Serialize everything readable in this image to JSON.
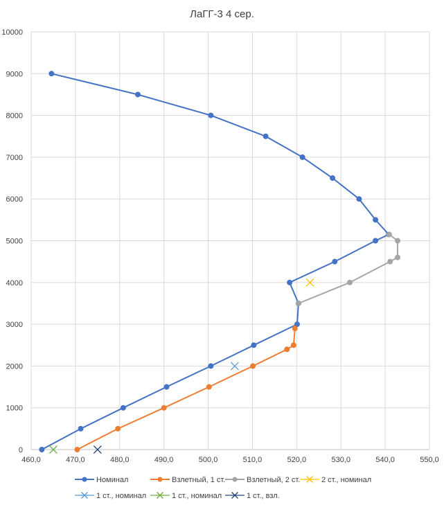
{
  "chart_data": {
    "type": "scatter",
    "title": "ЛаГГ-3 4 сер.",
    "xlabel": "",
    "ylabel": "",
    "xlim": [
      460,
      550
    ],
    "ylim": [
      0,
      10000
    ],
    "x_ticks": [
      "460,0",
      "470,0",
      "480,0",
      "490,0",
      "500,0",
      "510,0",
      "520,0",
      "530,0",
      "540,0",
      "550,0"
    ],
    "y_ticks": [
      "0",
      "1000",
      "2000",
      "3000",
      "4000",
      "5000",
      "6000",
      "7000",
      "8000",
      "9000",
      "10000"
    ],
    "grid": "vertical-and-horizontal",
    "legend_position": "bottom",
    "series": [
      {
        "name": "Номинал",
        "color": "#4472C4",
        "marker": "circle",
        "line": true,
        "points": [
          [
            462.4,
            0
          ],
          [
            471.2,
            500
          ],
          [
            480.8,
            1000
          ],
          [
            490.6,
            1500
          ],
          [
            500.6,
            2000
          ],
          [
            510.3,
            2500
          ],
          [
            520.1,
            3000
          ],
          [
            520.4,
            3500
          ],
          [
            518.4,
            4000
          ],
          [
            528.6,
            4500
          ],
          [
            537.8,
            5000
          ],
          [
            540.8,
            5150
          ],
          [
            537.8,
            5500
          ],
          [
            534.1,
            6000
          ],
          [
            528.1,
            6500
          ],
          [
            521.3,
            7000
          ],
          [
            513.0,
            7500
          ],
          [
            500.6,
            8000
          ],
          [
            484.1,
            8500
          ],
          [
            464.6,
            9000
          ]
        ]
      },
      {
        "name": "Взлетный, 1 ст.",
        "color": "#ED7D31",
        "marker": "circle",
        "line": true,
        "points": [
          [
            470.4,
            0
          ],
          [
            479.6,
            500
          ],
          [
            490.0,
            1000
          ],
          [
            500.2,
            1500
          ],
          [
            510.1,
            2000
          ],
          [
            517.8,
            2400
          ],
          [
            519.3,
            2500
          ],
          [
            519.6,
            2900
          ]
        ]
      },
      {
        "name": "Взлетный, 2 ст.",
        "color": "#A5A5A5",
        "marker": "circle",
        "line": true,
        "points": [
          [
            520.4,
            3500
          ],
          [
            532.0,
            4000
          ],
          [
            541.1,
            4500
          ],
          [
            542.8,
            4600
          ],
          [
            542.8,
            5000
          ],
          [
            540.9,
            5150
          ]
        ]
      },
      {
        "name": "2 ст., номинал",
        "color": "#FFC000",
        "marker": "x",
        "line": false,
        "points": [
          [
            523.0,
            4000
          ]
        ]
      },
      {
        "name": "1 ст., номинал",
        "color": "#5B9BD5",
        "marker": "x",
        "line": false,
        "points": [
          [
            506.0,
            2000
          ]
        ]
      },
      {
        "name": "1 ст., номинал",
        "color": "#70AD47",
        "marker": "x",
        "line": false,
        "points": [
          [
            465.0,
            0
          ]
        ]
      },
      {
        "name": "1 ст., взл.",
        "color": "#264478",
        "marker": "x",
        "line": false,
        "points": [
          [
            475.0,
            0
          ]
        ]
      }
    ]
  }
}
